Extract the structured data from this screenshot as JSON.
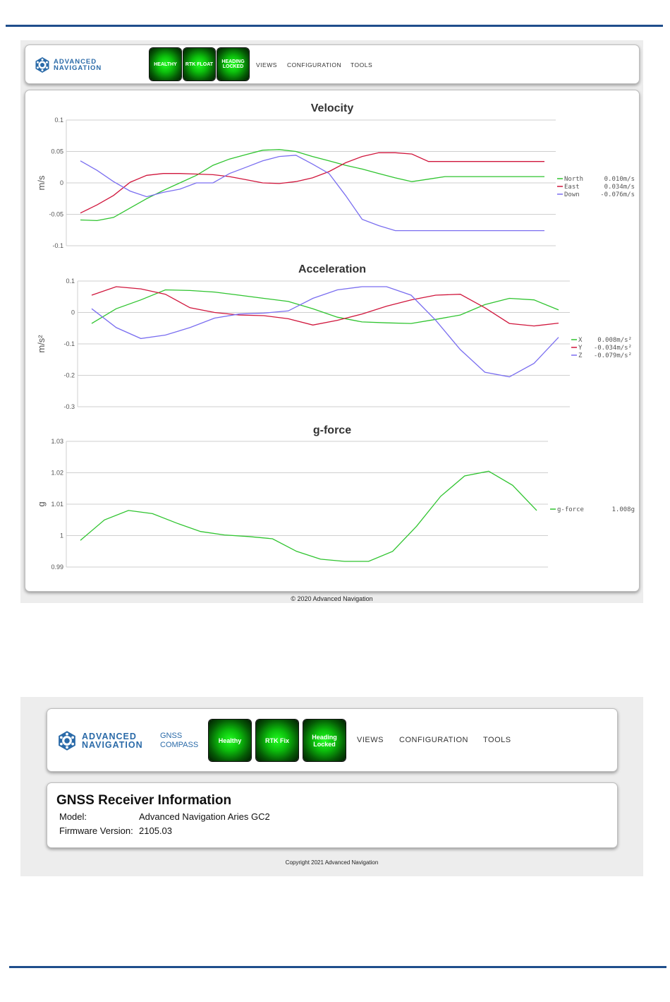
{
  "top_screen": {
    "logo": {
      "line1": "ADVANCED",
      "line2": "NAVIGATION"
    },
    "status": [
      "HEALTHY",
      "RTK FLOAT",
      "HEADING\nLOCKED"
    ],
    "nav": [
      "VIEWS",
      "CONFIGURATION",
      "TOOLS"
    ],
    "footer": "© 2020 Advanced Navigation"
  },
  "bottom_screen": {
    "logo": {
      "line1": "ADVANCED",
      "line2": "NAVIGATION"
    },
    "product": {
      "line1": "GNSS",
      "line2": "COMPASS"
    },
    "status": [
      "Healthy",
      "RTK Fix",
      "Heading\nLocked"
    ],
    "nav": [
      "VIEWS",
      "CONFIGURATION",
      "TOOLS"
    ],
    "info": {
      "title": "GNSS Receiver Information",
      "model_label": "Model:",
      "model_value": "Advanced Navigation Aries GC2",
      "firmware_label": "Firmware Version:",
      "firmware_value": "2105.03"
    },
    "footer": "Copyright 2021 Advanced Navigation"
  },
  "colors": {
    "brand": "#2a6aa8",
    "rule": "#1f4e8c",
    "green": "#2fc42f",
    "red": "#d0163c",
    "purple": "#7a6ef0"
  },
  "chart_data": [
    {
      "type": "line",
      "title": "Velocity",
      "ylabel": "m/s",
      "ylim": [
        -0.1,
        0.1
      ],
      "yticks": [
        "0.1",
        "0.05",
        "0",
        "-0.05",
        "-0.1"
      ],
      "x": [
        0,
        1,
        2,
        3,
        4,
        5,
        6,
        7,
        8,
        9,
        10,
        11,
        12,
        13,
        14,
        15,
        16,
        17,
        18,
        19,
        20,
        21,
        22,
        23,
        24,
        25,
        26,
        27,
        28
      ],
      "series": [
        {
          "name": "North",
          "color": "#2fc42f",
          "readout": "0.010m/s",
          "values": [
            -0.059,
            -0.06,
            -0.055,
            -0.04,
            -0.025,
            -0.012,
            0.0,
            0.012,
            0.028,
            0.038,
            0.045,
            0.052,
            0.053,
            0.05,
            0.042,
            0.035,
            0.028,
            0.022,
            0.015,
            0.008,
            0.002,
            0.006,
            0.01,
            0.01,
            0.01,
            0.01,
            0.01,
            0.01,
            0.01
          ]
        },
        {
          "name": "East",
          "color": "#d0163c",
          "readout": "0.034m/s",
          "values": [
            -0.048,
            -0.035,
            -0.02,
            0.001,
            0.012,
            0.015,
            0.015,
            0.014,
            0.013,
            0.01,
            0.005,
            0.0,
            -0.001,
            0.002,
            0.008,
            0.018,
            0.032,
            0.042,
            0.048,
            0.048,
            0.046,
            0.034,
            0.034,
            0.034,
            0.034,
            0.034,
            0.034,
            0.034,
            0.034
          ]
        },
        {
          "name": "Down",
          "color": "#7a6ef0",
          "readout": "-0.076m/s",
          "values": [
            0.035,
            0.02,
            0.002,
            -0.013,
            -0.022,
            -0.015,
            -0.01,
            0.0,
            0.0,
            0.015,
            0.025,
            0.035,
            0.042,
            0.044,
            0.03,
            0.015,
            -0.02,
            -0.058,
            -0.068,
            -0.076,
            -0.076,
            -0.076,
            -0.076,
            -0.076,
            -0.076,
            -0.076,
            -0.076,
            -0.076,
            -0.076
          ]
        }
      ]
    },
    {
      "type": "line",
      "title": "Acceleration",
      "ylabel": "m/s²",
      "ylim": [
        -0.3,
        0.1
      ],
      "yticks": [
        "0.1",
        "0",
        "-0.1",
        "-0.2",
        "-0.3"
      ],
      "series": [
        {
          "name": "X",
          "color": "#2fc42f",
          "readout": "0.008m/s²",
          "values": [
            -0.035,
            0.012,
            0.04,
            0.072,
            0.07,
            0.065,
            0.055,
            0.045,
            0.035,
            0.012,
            -0.015,
            -0.03,
            -0.033,
            -0.035,
            -0.022,
            -0.008,
            0.025,
            0.045,
            0.04,
            0.008
          ]
        },
        {
          "name": "Y",
          "color": "#d0163c",
          "readout": "-0.034m/s²",
          "values": [
            0.055,
            0.082,
            0.075,
            0.058,
            0.015,
            0.0,
            -0.008,
            -0.01,
            -0.02,
            -0.04,
            -0.025,
            -0.005,
            0.02,
            0.04,
            0.055,
            0.058,
            0.015,
            -0.035,
            -0.043,
            -0.034
          ]
        },
        {
          "name": "Z",
          "color": "#7a6ef0",
          "readout": "-0.079m/s²",
          "values": [
            0.012,
            -0.048,
            -0.083,
            -0.072,
            -0.048,
            -0.018,
            -0.005,
            -0.002,
            0.005,
            0.045,
            0.072,
            0.082,
            0.082,
            0.055,
            -0.025,
            -0.118,
            -0.19,
            -0.205,
            -0.162,
            -0.079
          ]
        }
      ]
    },
    {
      "type": "line",
      "title": "g-force",
      "ylabel": "g",
      "ylim": [
        0.99,
        1.03
      ],
      "yticks": [
        "1.03",
        "1.02",
        "1.01",
        "1",
        "0.99"
      ],
      "series": [
        {
          "name": "g-force",
          "color": "#2fc42f",
          "readout": "1.008g",
          "values": [
            0.9985,
            1.005,
            1.008,
            1.007,
            1.004,
            1.0013,
            1.0002,
            0.9997,
            0.999,
            0.995,
            0.9925,
            0.9918,
            0.9918,
            0.995,
            1.003,
            1.0125,
            1.019,
            1.0205,
            1.016,
            1.008
          ]
        }
      ]
    }
  ]
}
